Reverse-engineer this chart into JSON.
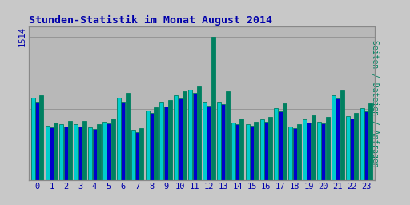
{
  "title": "Stunden-Statistik im Monat August 2014",
  "ylabel": "Seiten / Dateien / Anfragen",
  "ytick_label": "1514",
  "outer_bg_color": "#c8c8c8",
  "plot_bg_color": "#b8b8b8",
  "bar_colors": [
    "#00cccc",
    "#0000cc",
    "#008060"
  ],
  "bar_edge_color": "#008060",
  "hours": [
    0,
    1,
    2,
    3,
    4,
    5,
    6,
    7,
    8,
    9,
    10,
    11,
    12,
    13,
    14,
    15,
    16,
    17,
    18,
    19,
    20,
    21,
    22,
    23
  ],
  "series_cyan": [
    870,
    580,
    590,
    590,
    560,
    620,
    870,
    530,
    740,
    820,
    900,
    960,
    820,
    820,
    610,
    590,
    640,
    760,
    570,
    640,
    620,
    900,
    680,
    760
  ],
  "series_blue": [
    820,
    560,
    565,
    565,
    540,
    600,
    820,
    510,
    710,
    780,
    860,
    920,
    790,
    800,
    590,
    572,
    616,
    732,
    554,
    614,
    598,
    862,
    652,
    732
  ],
  "series_green": [
    900,
    610,
    630,
    625,
    590,
    650,
    920,
    550,
    770,
    850,
    935,
    990,
    1514,
    940,
    650,
    620,
    670,
    810,
    590,
    690,
    670,
    950,
    710,
    810
  ],
  "ylim": [
    0,
    1620
  ],
  "yticks": [
    1514
  ],
  "title_color": "#0000aa",
  "title_fontsize": 9.5,
  "ylabel_color": "#008060",
  "ylabel_fontsize": 7,
  "tick_label_color": "#0000aa",
  "xtick_fontsize": 7.5,
  "ytick_fontsize": 7.5
}
